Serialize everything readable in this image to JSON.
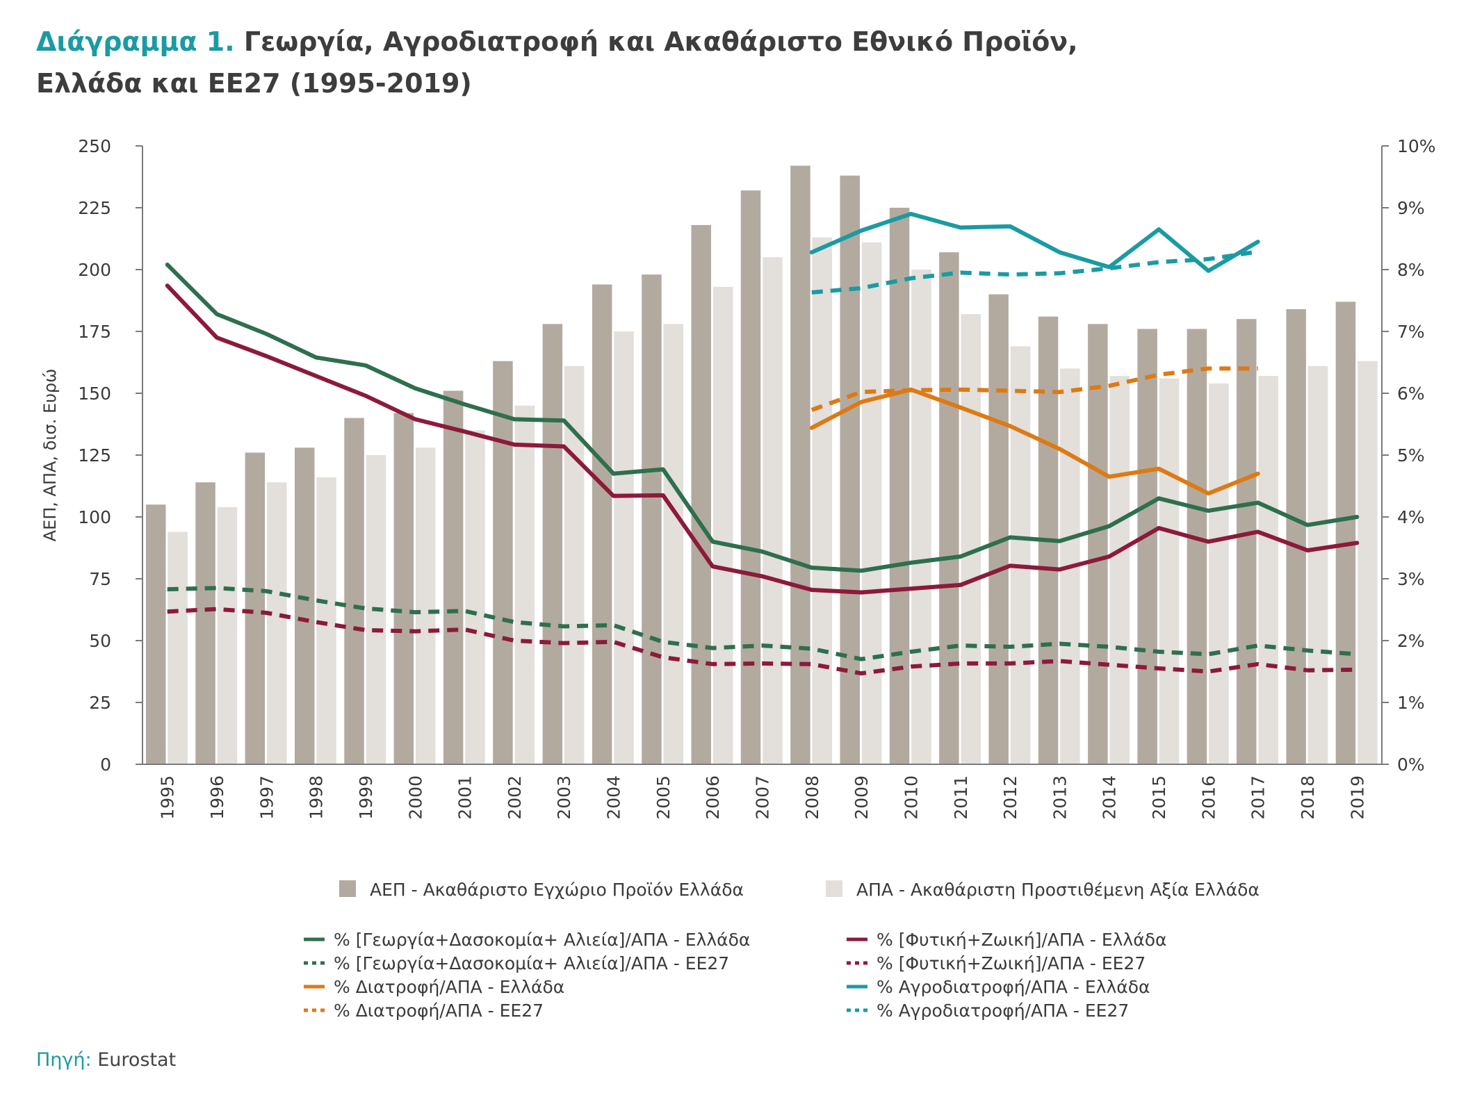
{
  "title": {
    "prefix": "Διάγραμμα 1.",
    "line1": "Γεωργία, Αγροδιατροφή και Ακαθάριστο Εθνικό Προϊόν,",
    "line2": "Ελλάδα και ΕΕ27 (1995-2019)"
  },
  "source": {
    "label": "Πηγή:",
    "value": "Eurostat"
  },
  "colors": {
    "gdp": "#b2aa9f",
    "gva": "#e3dfda",
    "agri": "#2e6f4e",
    "crop": "#8c1a3a",
    "food": "#dd7a15",
    "agrofood": "#1a9ba3",
    "axis": "#7a7a7a"
  },
  "chart_data": {
    "type": "bar",
    "categories": [
      "1995",
      "1996",
      "1997",
      "1998",
      "1999",
      "2000",
      "2001",
      "2002",
      "2003",
      "2004",
      "2005",
      "2006",
      "2007",
      "2008",
      "2009",
      "2010",
      "2011",
      "2012",
      "2013",
      "2014",
      "2015",
      "2016",
      "2017",
      "2018",
      "2019"
    ],
    "ylabel": "ΑΕΠ, ΑΠΑ, δισ. Ευρώ",
    "ylim": [
      0,
      250
    ],
    "y_ticks": [
      "0",
      "25",
      "50",
      "75",
      "100",
      "125",
      "150",
      "175",
      "200",
      "225",
      "250"
    ],
    "y2lim": [
      0,
      10
    ],
    "y2_ticks": [
      "0%",
      "1%",
      "2%",
      "3%",
      "4%",
      "5%",
      "6%",
      "7%",
      "8%",
      "9%",
      "10%"
    ],
    "bar_series": [
      {
        "key": "gdp",
        "name": "ΑΕΠ - Ακαθάριστο Εγχώριο Προϊόν Ελλάδα",
        "values": [
          105,
          114,
          126,
          128,
          140,
          142,
          151,
          163,
          178,
          194,
          198,
          218,
          232,
          242,
          238,
          225,
          207,
          190,
          181,
          178,
          176,
          176,
          180,
          184,
          187
        ]
      },
      {
        "key": "gva",
        "name": "ΑΠΑ - Ακαθάριστη Προστιθέμενη Αξία Ελλάδα",
        "values": [
          94,
          104,
          114,
          116,
          125,
          128,
          135,
          145,
          161,
          175,
          178,
          193,
          205,
          213,
          211,
          200,
          182,
          169,
          160,
          157,
          156,
          154,
          157,
          161,
          163
        ]
      }
    ],
    "line_series": [
      {
        "key": "agri",
        "name": "% [Γεωργία+Δασοκομία+ Αλιεία]/ΑΠΑ - Ελλάδα",
        "dashed": false,
        "values": [
          8.08,
          7.28,
          6.96,
          6.58,
          6.45,
          6.08,
          5.82,
          5.58,
          5.56,
          4.7,
          4.77,
          3.6,
          3.44,
          3.18,
          3.13,
          3.26,
          3.36,
          3.67,
          3.61,
          3.85,
          4.3,
          4.1,
          4.23,
          3.87,
          4.0
        ]
      },
      {
        "key": "crop",
        "name": "% [Φυτική+Ζωική]/ΑΠΑ - Ελλάδα",
        "dashed": false,
        "values": [
          7.74,
          6.9,
          6.6,
          6.28,
          5.96,
          5.58,
          5.38,
          5.17,
          5.14,
          4.34,
          4.35,
          3.2,
          3.04,
          2.82,
          2.78,
          2.84,
          2.9,
          3.21,
          3.15,
          3.36,
          3.82,
          3.6,
          3.76,
          3.46,
          3.58
        ]
      },
      {
        "key": "agri",
        "name": "% [Γεωργία+Δασοκομία+ Αλιεία]/ΑΠΑ - ΕΕ27",
        "dashed": true,
        "values": [
          2.83,
          2.85,
          2.8,
          2.65,
          2.52,
          2.46,
          2.48,
          2.3,
          2.23,
          2.25,
          1.98,
          1.88,
          1.92,
          1.87,
          1.7,
          1.82,
          1.92,
          1.9,
          1.95,
          1.9,
          1.82,
          1.78,
          1.92,
          1.84,
          1.78
        ]
      },
      {
        "key": "crop",
        "name": "% [Φυτική+Ζωική]/ΑΠΑ - ΕΕ27",
        "dashed": true,
        "values": [
          2.47,
          2.51,
          2.45,
          2.3,
          2.17,
          2.15,
          2.18,
          2.0,
          1.96,
          1.98,
          1.73,
          1.62,
          1.63,
          1.62,
          1.47,
          1.58,
          1.63,
          1.63,
          1.67,
          1.61,
          1.55,
          1.5,
          1.62,
          1.52,
          1.53
        ]
      },
      {
        "key": "food",
        "name": "% Διατροφή/ΑΠΑ - Ελλάδα",
        "dashed": false,
        "start_index": 13,
        "values": [
          5.44,
          5.86,
          6.06,
          5.77,
          5.47,
          5.1,
          4.65,
          4.78,
          4.38,
          4.7
        ]
      },
      {
        "key": "food",
        "name": "% Διατροφή/ΑΠΑ - ΕΕ27",
        "dashed": true,
        "start_index": 13,
        "values": [
          5.73,
          6.02,
          6.05,
          6.06,
          6.04,
          6.02,
          6.12,
          6.3,
          6.4,
          6.4
        ]
      },
      {
        "key": "agrofood",
        "name": "% Αγροδιατροφή/ΑΠΑ - Ελλάδα",
        "dashed": false,
        "start_index": 13,
        "values": [
          8.28,
          8.63,
          8.9,
          8.68,
          8.7,
          8.28,
          8.04,
          8.65,
          7.98,
          8.45
        ]
      },
      {
        "key": "agrofood",
        "name": "% Αγροδιατροφή/ΑΠΑ - ΕΕ27",
        "dashed": true,
        "start_index": 13,
        "values": [
          7.63,
          7.7,
          7.86,
          7.95,
          7.92,
          7.94,
          8.02,
          8.12,
          8.17,
          8.29
        ]
      }
    ],
    "legend_placement": "bottom",
    "grid": false
  }
}
